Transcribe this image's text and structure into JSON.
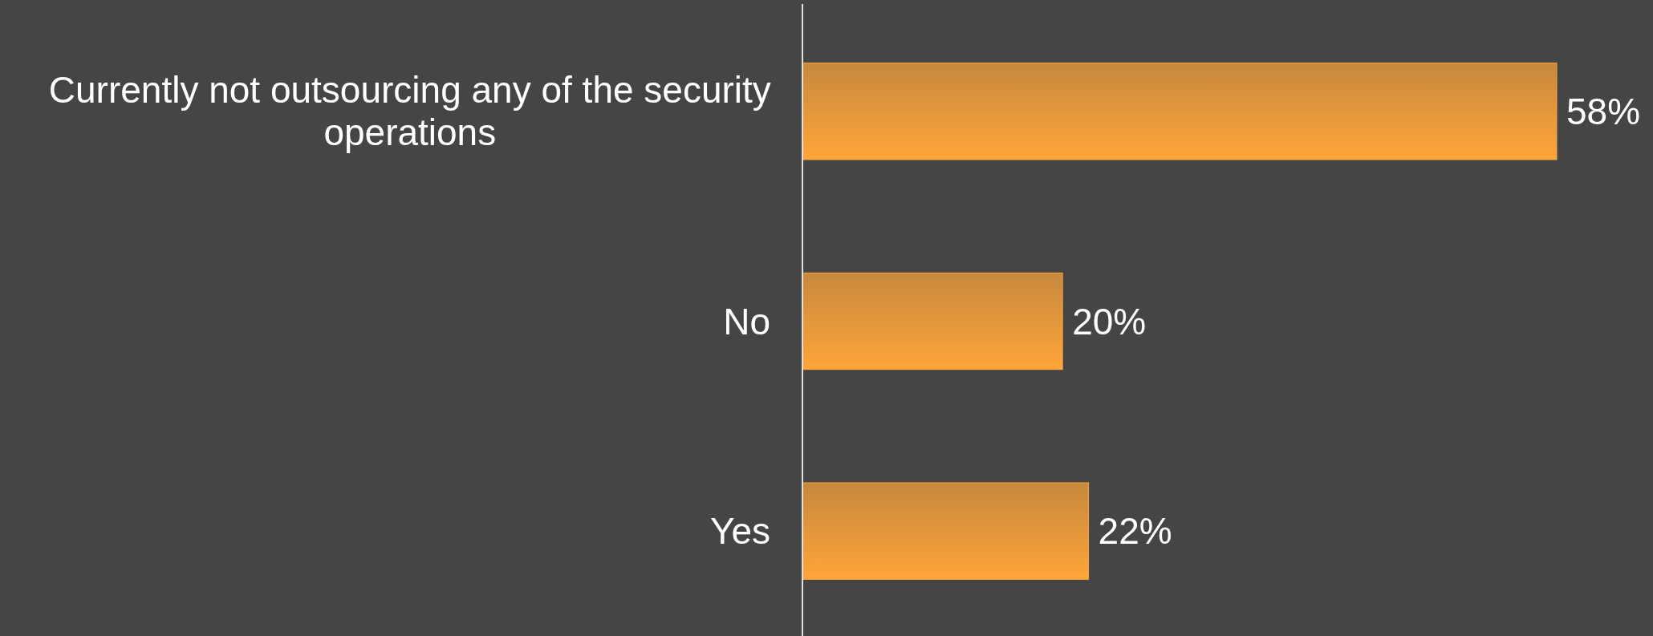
{
  "chart_data": {
    "type": "bar",
    "orientation": "horizontal",
    "categories": [
      "Currently not outsourcing any of the security operations",
      "No",
      "Yes"
    ],
    "values": [
      58,
      20,
      22
    ],
    "value_labels": [
      "58%",
      "20%",
      "22%"
    ],
    "color": "#ffa53a"
  }
}
